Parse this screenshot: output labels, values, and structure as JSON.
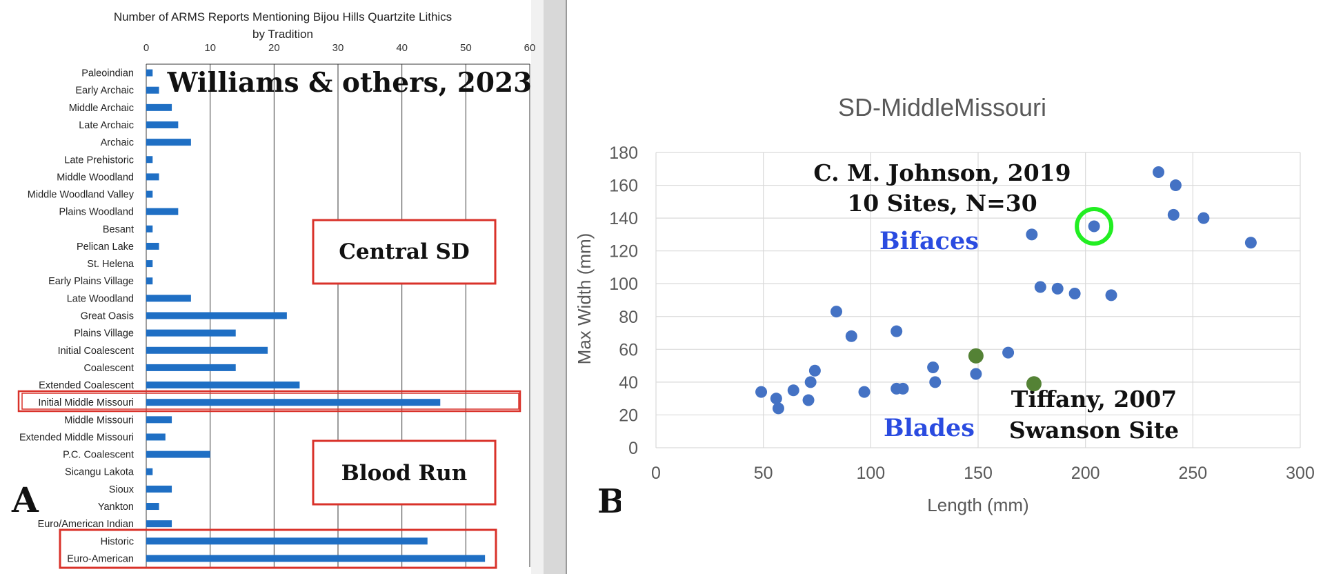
{
  "chart_data": [
    {
      "type": "bar",
      "orientation": "horizontal",
      "title": "Number of ARMS Reports Mentioning Bijou Hills Quartzite Lithics",
      "subtitle": "by Tradition",
      "categories": [
        "Paleoindian",
        "Early Archaic",
        "Middle Archaic",
        "Late Archaic",
        "Archaic",
        "Late Prehistoric",
        "Middle Woodland",
        "Middle Woodland Valley",
        "Plains Woodland",
        "Besant",
        "Pelican Lake",
        "St. Helena",
        "Early Plains Village",
        "Late Woodland",
        "Great Oasis",
        "Plains Village",
        "Initial Coalescent",
        "Coalescent",
        "Extended Coalescent",
        "Initial Middle Missouri",
        "Middle Missouri",
        "Extended Middle Missouri",
        "P.C. Coalescent",
        "Sicangu Lakota",
        "Sioux",
        "Yankton",
        "Euro/American Indian",
        "Historic",
        "Euro-American"
      ],
      "values": [
        1,
        2,
        4,
        5,
        7,
        1,
        2,
        1,
        5,
        1,
        2,
        1,
        1,
        7,
        22,
        14,
        19,
        14,
        24,
        46,
        4,
        3,
        10,
        1,
        4,
        2,
        4,
        44,
        53
      ],
      "xlim": [
        0,
        60
      ],
      "xticks": [
        0,
        10,
        20,
        30,
        40,
        50,
        60
      ],
      "tick_position": "top",
      "grid": true,
      "bar_color": "#1f6fc4",
      "highlight_color": "#d9322a",
      "highlighted_categories": [
        "Initial Middle Missouri",
        "Historic",
        "Euro-American"
      ],
      "annotations": {
        "citation": "Williams & others, 2023",
        "box_upper": "Central SD",
        "box_lower": "Blood Run",
        "panel_label": "A"
      }
    },
    {
      "type": "scatter",
      "title": "SD-MiddleMissouri",
      "xlabel": "Length (mm)",
      "ylabel": "Max Width (mm)",
      "xlim": [
        0,
        300
      ],
      "ylim": [
        0,
        180
      ],
      "xticks": [
        0,
        50,
        100,
        150,
        200,
        250,
        300
      ],
      "yticks": [
        0,
        20,
        40,
        60,
        80,
        100,
        120,
        140,
        160,
        180
      ],
      "grid": true,
      "series": [
        {
          "color": "#4472c4",
          "points": [
            [
              49,
              34
            ],
            [
              56,
              30
            ],
            [
              57,
              24
            ],
            [
              64,
              35
            ],
            [
              71,
              29
            ],
            [
              72,
              40
            ],
            [
              74,
              47
            ],
            [
              84,
              83
            ],
            [
              91,
              68
            ],
            [
              97,
              34
            ],
            [
              112,
              71
            ],
            [
              112,
              36
            ],
            [
              115,
              36
            ],
            [
              129,
              49
            ],
            [
              130,
              40
            ],
            [
              149,
              45
            ],
            [
              164,
              58
            ],
            [
              175,
              130
            ],
            [
              179,
              98
            ],
            [
              187,
              97
            ],
            [
              195,
              94
            ],
            [
              204,
              135
            ],
            [
              212,
              93
            ],
            [
              234,
              168
            ],
            [
              241,
              142
            ],
            [
              242,
              160
            ],
            [
              255,
              140
            ],
            [
              277,
              125
            ]
          ]
        },
        {
          "color": "#548235",
          "points": [
            [
              149,
              56
            ],
            [
              176,
              39
            ]
          ]
        }
      ],
      "highlight_ring": {
        "x": 204,
        "y": 135,
        "color": "#22ee22"
      },
      "annotations": {
        "citation_line1": "C. M. Johnson, 2019",
        "citation_line2": "10 Sites, N=30",
        "bifaces": "Bifaces",
        "blades": "Blades",
        "tiffany_line1": "Tiffany, 2007",
        "tiffany_line2": "Swanson Site",
        "panel_label": "B"
      }
    }
  ]
}
